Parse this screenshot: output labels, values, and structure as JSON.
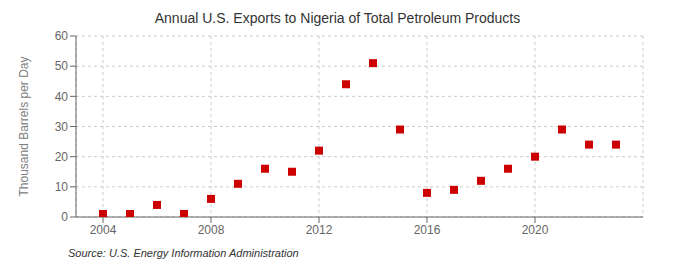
{
  "chart_data": {
    "type": "scatter",
    "title": "Annual U.S. Exports to Nigeria of Total Petroleum Products",
    "ylabel": "Thousand Barrels per Day",
    "annotations": [
      "Source: U.S. Energy Information Administration"
    ],
    "x": [
      2004,
      2005,
      2006,
      2007,
      2008,
      2009,
      2010,
      2011,
      2012,
      2013,
      2014,
      2015,
      2016,
      2017,
      2018,
      2019,
      2020,
      2021,
      2022,
      2023
    ],
    "values": [
      1,
      1,
      4,
      1,
      6,
      11,
      16,
      15,
      22,
      44,
      51,
      29,
      8,
      9,
      12,
      16,
      20,
      29,
      24,
      24
    ],
    "color": "#cc0000",
    "marker": "square",
    "xlim": [
      2003.0,
      2024.0
    ],
    "ylim": [
      0,
      60
    ],
    "xticks": [
      2004,
      2008,
      2012,
      2016,
      2020
    ],
    "yticks": [
      0,
      10,
      20,
      30,
      40,
      50,
      60
    ],
    "grid": true
  }
}
